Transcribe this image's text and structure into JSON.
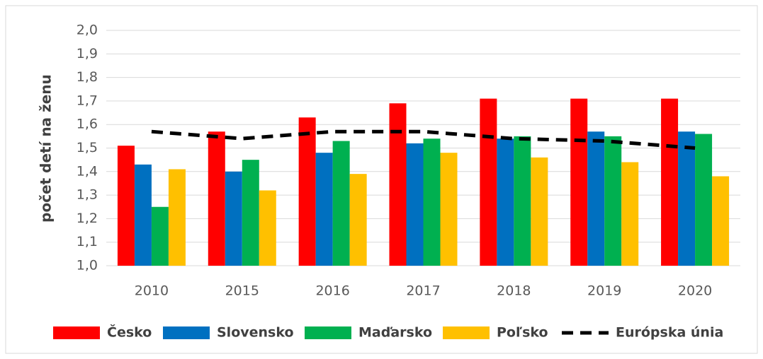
{
  "chart_data": {
    "type": "bar",
    "y_label": "počet detí na ženu",
    "categories": [
      "2010",
      "2015",
      "2016",
      "2017",
      "2018",
      "2019",
      "2020"
    ],
    "series": [
      {
        "name": "Česko",
        "color": "#ff0000",
        "values": [
          1.51,
          1.57,
          1.63,
          1.69,
          1.71,
          1.71,
          1.71
        ]
      },
      {
        "name": "Slovensko",
        "color": "#0070c0",
        "values": [
          1.43,
          1.4,
          1.48,
          1.52,
          1.54,
          1.57,
          1.57
        ]
      },
      {
        "name": "Maďarsko",
        "color": "#00b050",
        "values": [
          1.25,
          1.45,
          1.53,
          1.54,
          1.55,
          1.55,
          1.56
        ]
      },
      {
        "name": "Poľsko",
        "color": "#ffc000",
        "values": [
          1.41,
          1.32,
          1.39,
          1.48,
          1.46,
          1.44,
          1.38
        ]
      },
      {
        "name": "Európska únia",
        "color": "#000000",
        "type": "line",
        "dashed": true,
        "values": [
          1.57,
          1.54,
          1.57,
          1.57,
          1.54,
          1.53,
          1.5
        ]
      }
    ],
    "ylim": [
      1.0,
      2.0
    ],
    "yticks": [
      {
        "value": 1.0,
        "label": "1,0"
      },
      {
        "value": 1.1,
        "label": "1,1"
      },
      {
        "value": 1.2,
        "label": "1,2"
      },
      {
        "value": 1.3,
        "label": "1,3"
      },
      {
        "value": 1.4,
        "label": "1,4"
      },
      {
        "value": 1.5,
        "label": "1,5"
      },
      {
        "value": 1.6,
        "label": "1,6"
      },
      {
        "value": 1.7,
        "label": "1,7"
      },
      {
        "value": 1.8,
        "label": "1,8"
      },
      {
        "value": 1.9,
        "label": "1,9"
      },
      {
        "value": 2.0,
        "label": "2,0"
      }
    ],
    "grid": true,
    "legend": "bottom"
  }
}
